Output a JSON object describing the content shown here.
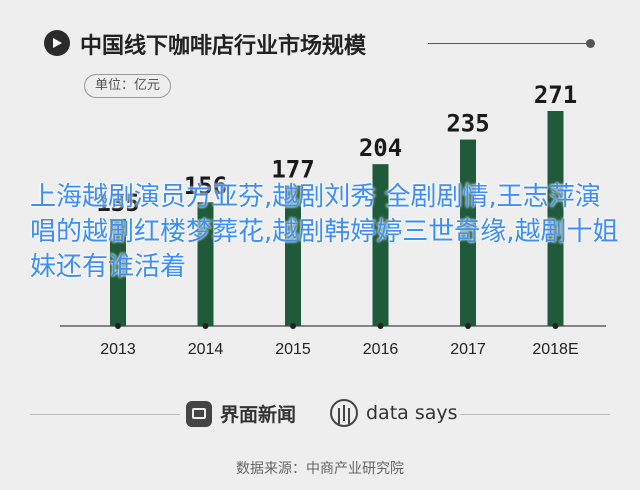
{
  "header": {
    "title": "中国线下咖啡店行业市场规模",
    "unit_label": "单位：亿元"
  },
  "chart_data": {
    "type": "bar",
    "title": "中国线下咖啡店行业市场规模",
    "unit": "单位：亿元",
    "categories": [
      "2013",
      "2014",
      "2015",
      "2016",
      "2017",
      "2018E"
    ],
    "values": [
      135,
      156,
      177,
      204,
      235,
      271
    ],
    "value_labels": [
      "135",
      "156",
      "177",
      "204",
      "235",
      "271"
    ],
    "ylim": [
      0,
      280
    ],
    "grid": false,
    "legend": "none",
    "bar_color": "#1f5a3a",
    "label_color": "#1a1a1a"
  },
  "overlay_text": "上海越剧演员方亚芬,越剧刘秀 全剧剧情,王志萍演唱的越剧红楼梦葬花,越剧韩婷婷三世奇缘,越剧十姐妹还有谁活着",
  "footer": {
    "brand1": "界面新闻",
    "brand2": "data says",
    "source": "数据来源：中商产业研究院"
  },
  "icons": {
    "title_marker": "play-circle-icon",
    "brand1_icon": "jiemian-logo-icon",
    "brand2_icon": "data-says-logo-icon"
  }
}
